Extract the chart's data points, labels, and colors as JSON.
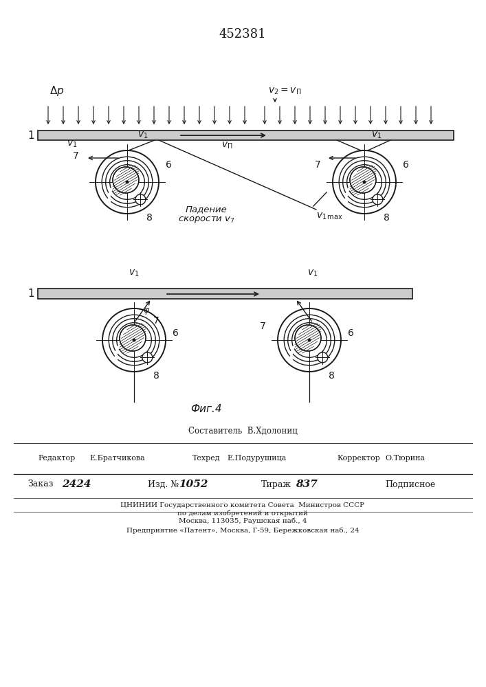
{
  "patent_number": "452381",
  "footer_composer": "Составитель  В.Хдолониц",
  "footer_editor_label": "Редактор",
  "footer_editor": "Е.Братчикова",
  "footer_techred_label": "Техред",
  "footer_techred": "Е.Подурушица",
  "footer_corrector_label": "Корректор",
  "footer_corrector": "О.Тюрина",
  "footer_order_label": "Заказ",
  "footer_order": "2424",
  "footer_issue_label": "Изд. №",
  "footer_issue": "1052",
  "footer_edition_label": "Тираж",
  "footer_edition": "837",
  "footer_subscription": "Подписное",
  "footer_org1": "ЦНИНИИ Государственного комитета Совета  Министров СССР",
  "footer_org2": "по делам изобретений и открытий",
  "footer_org3": "Москва, 113035, Раушская наб., 4",
  "footer_enterprise": "Предприятие «Патент», Москва, Г-59, Бережковская наб., 24",
  "fig4_label": "Фиг.4",
  "bg_color": "#ffffff",
  "line_color": "#1a1a1a"
}
